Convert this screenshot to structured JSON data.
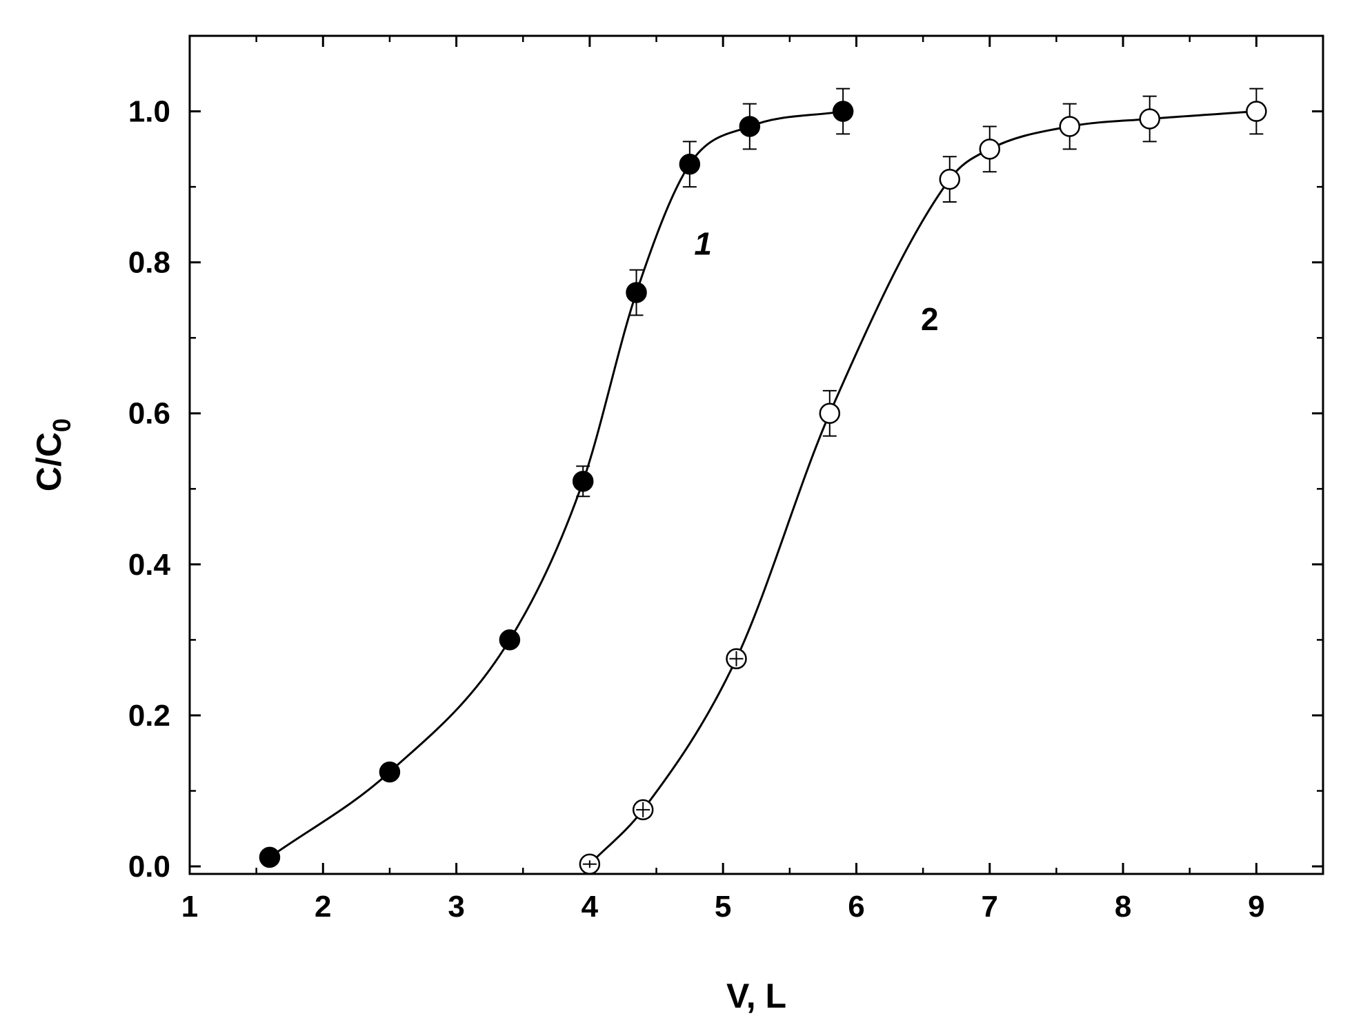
{
  "chart_data": {
    "type": "scatter",
    "title": "",
    "xlabel": "V, L",
    "ylabel_main": "C/C",
    "ylabel_sub": "0",
    "xlim": [
      1,
      9.5
    ],
    "ylim": [
      -0.01,
      1.1
    ],
    "x_ticks": [
      1,
      2,
      3,
      4,
      5,
      6,
      7,
      8,
      9
    ],
    "x_tick_labels": [
      "1",
      "2",
      "3",
      "4",
      "5",
      "6",
      "7",
      "8",
      "9"
    ],
    "y_ticks": [
      0.0,
      0.2,
      0.4,
      0.6,
      0.8,
      1.0
    ],
    "y_tick_labels": [
      "0.0",
      "0.2",
      "0.4",
      "0.6",
      "0.8",
      "1.0"
    ],
    "grid": false,
    "legend": "none",
    "series": [
      {
        "label": "1",
        "label_pos": [
          4.85,
          0.81
        ],
        "label_italic": true,
        "marker": "filled-circle",
        "x": [
          1.6,
          2.5,
          3.4,
          3.95,
          4.35,
          4.75,
          5.2,
          5.9
        ],
        "y": [
          0.012,
          0.125,
          0.3,
          0.51,
          0.76,
          0.93,
          0.98,
          1.0
        ],
        "err": [
          0,
          0,
          0,
          0.02,
          0.03,
          0.03,
          0.03,
          0.03
        ]
      },
      {
        "label": "2",
        "label_pos": [
          6.55,
          0.71
        ],
        "label_italic": false,
        "marker": "open-circle",
        "x": [
          4.0,
          4.4,
          5.1,
          5.8,
          6.7,
          7.0,
          7.6,
          8.2,
          9.0
        ],
        "y": [
          0.003,
          0.075,
          0.275,
          0.6,
          0.91,
          0.95,
          0.98,
          0.99,
          1.0
        ],
        "err": [
          0.005,
          0.01,
          0.01,
          0.03,
          0.03,
          0.03,
          0.03,
          0.03,
          0.03
        ]
      }
    ],
    "colors": {
      "axis": "#000000",
      "marker": "#000000",
      "open_fill": "#ffffff"
    }
  }
}
